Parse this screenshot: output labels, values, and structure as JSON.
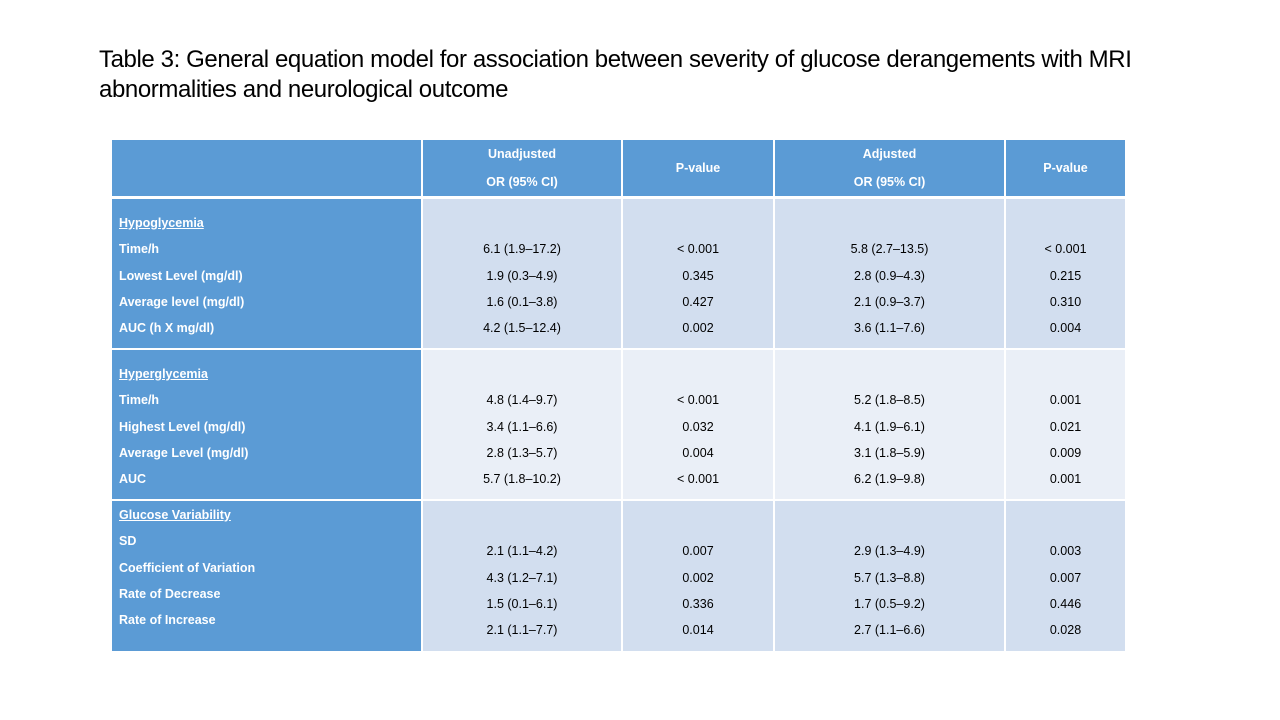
{
  "title": "Table 3: General equation model for association between severity of glucose derangements with MRI abnormalities and neurological outcome",
  "header": {
    "unadjusted_line1": "Unadjusted",
    "unadjusted_line2": "OR (95% CI)",
    "pvalue1": "P-value",
    "adjusted_line1": "Adjusted",
    "adjusted_line2": "OR (95% CI)",
    "pvalue2": "P-value"
  },
  "sections": [
    {
      "heading": "Hypoglycemia",
      "labels": [
        "Time/h",
        "Lowest Level (mg/dl)",
        "Average level (mg/dl)",
        "AUC (h X mg/dl)"
      ],
      "unadjusted": [
        "6.1 (1.9–17.2)",
        "1.9 (0.3–4.9)",
        "1.6 (0.1–3.8)",
        "4.2 (1.5–12.4)"
      ],
      "p_unadjusted": [
        "< 0.001",
        "0.345",
        "0.427",
        "0.002"
      ],
      "adjusted": [
        "5.8 (2.7–13.5)",
        "2.8 (0.9–4.3)",
        "2.1 (0.9–3.7)",
        "3.6 (1.1–7.6)"
      ],
      "p_adjusted": [
        "< 0.001",
        "0.215",
        "0.310",
        "0.004"
      ]
    },
    {
      "heading": "Hyperglycemia",
      "labels": [
        "Time/h",
        "Highest Level (mg/dl)",
        "Average Level (mg/dl)",
        "AUC"
      ],
      "unadjusted": [
        "4.8 (1.4–9.7)",
        "3.4 (1.1–6.6)",
        "2.8 (1.3–5.7)",
        "5.7 (1.8–10.2)"
      ],
      "p_unadjusted": [
        "< 0.001",
        "0.032",
        "0.004",
        "< 0.001"
      ],
      "adjusted": [
        "5.2 (1.8–8.5)",
        "4.1 (1.9–6.1)",
        "3.1 (1.8–5.9)",
        "6.2 (1.9–9.8)"
      ],
      "p_adjusted": [
        "0.001",
        "0.021",
        "0.009",
        "0.001"
      ]
    },
    {
      "heading": "Glucose Variability",
      "labels": [
        "SD",
        "Coefficient of Variation",
        "Rate of Decrease",
        "Rate of Increase"
      ],
      "unadjusted": [
        "2.1 (1.1–4.2)",
        "4.3 (1.2–7.1)",
        "1.5 (0.1–6.1)",
        "2.1 (1.1–7.7)"
      ],
      "p_unadjusted": [
        "0.007",
        "0.002",
        "0.336",
        "0.014"
      ],
      "adjusted": [
        "2.9 (1.3–4.9)",
        "5.7 (1.3–8.8)",
        "1.7 (0.5–9.2)",
        "2.7 (1.1–6.6)"
      ],
      "p_adjusted": [
        "0.003",
        "0.007",
        "0.446",
        "0.028"
      ]
    }
  ],
  "colors": {
    "header_blue": "#5b9bd5",
    "band_dark": "#d2deef",
    "band_light": "#eaeff7"
  }
}
